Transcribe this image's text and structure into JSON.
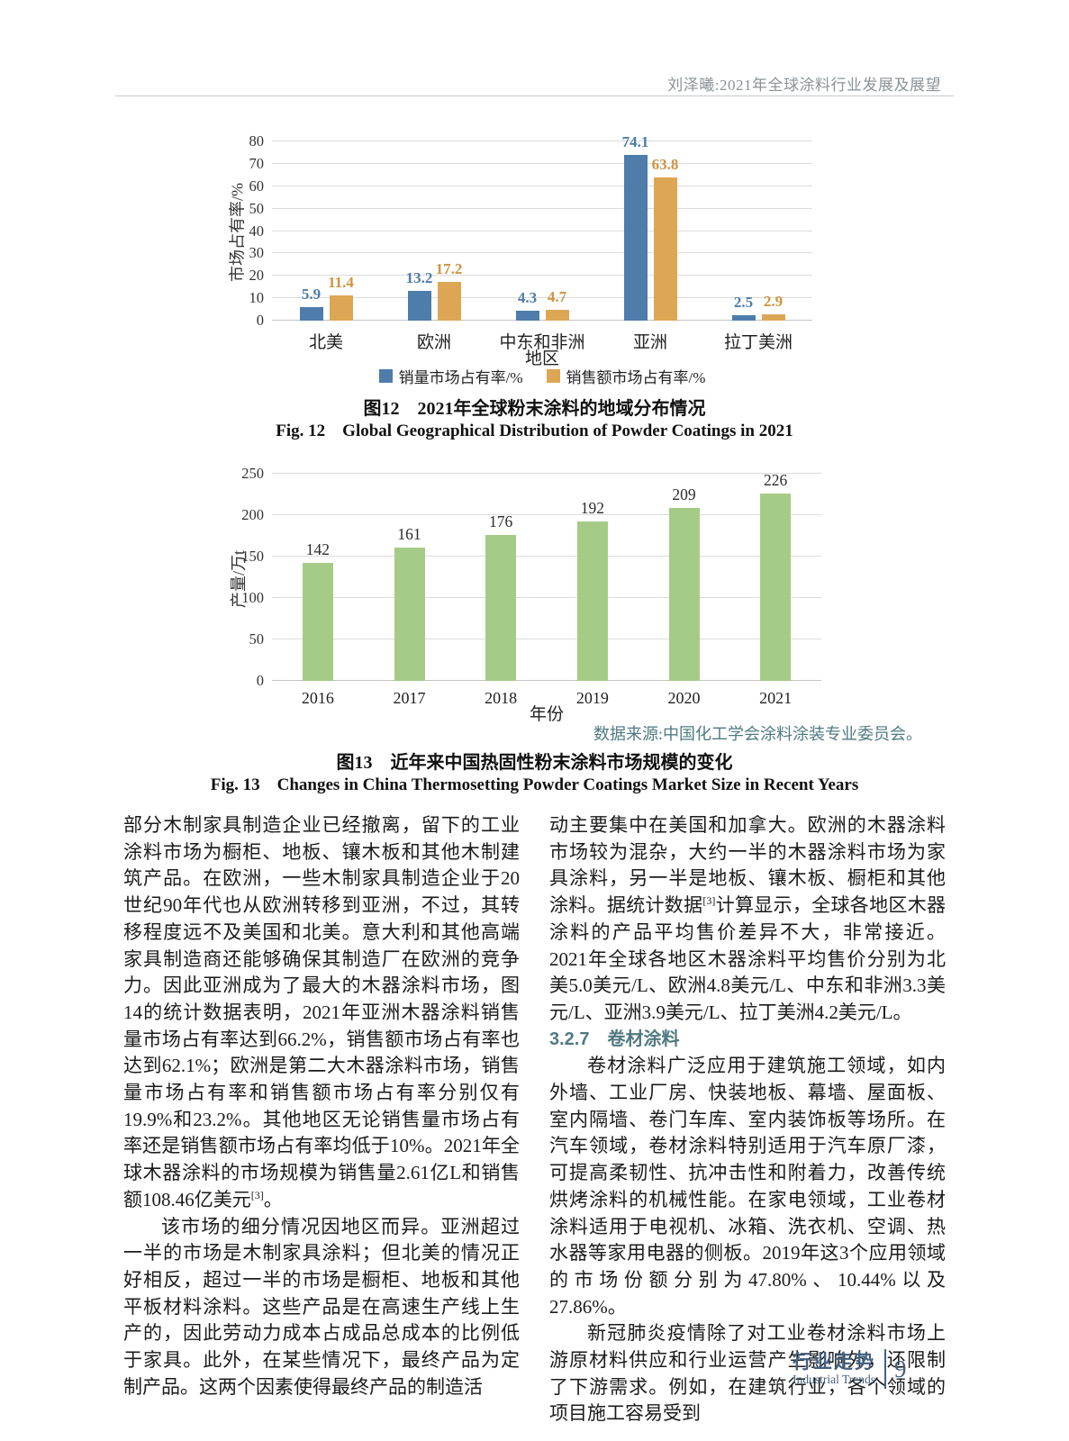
{
  "header": {
    "running_title": "刘泽曦:2021年全球涂料行业发展及展望"
  },
  "chart_data": [
    {
      "id": "fig12",
      "type": "bar",
      "title_cn": "图12　2021年全球粉末涂料的地域分布情况",
      "title_en": "Fig. 12　Global Geographical Distribution of Powder Coatings in 2021",
      "ylabel": "市场占有率/%",
      "xlabel": "地区",
      "ylim": [
        0,
        80
      ],
      "yticks": [
        0,
        10,
        20,
        30,
        40,
        50,
        60,
        70,
        80
      ],
      "grid": true,
      "legend_position": "bottom",
      "categories": [
        "北美",
        "欧洲",
        "中东和非洲",
        "亚洲",
        "拉丁美洲"
      ],
      "series": [
        {
          "name": "销量市场占有率/%",
          "color": "#4e7cab",
          "label_color": "#4e7cab",
          "values": [
            5.9,
            13.2,
            4.3,
            74.1,
            2.5
          ]
        },
        {
          "name": "销售额市场占有率/%",
          "color": "#ddA654",
          "label_color": "#cd9440",
          "values": [
            11.4,
            17.2,
            4.7,
            63.8,
            2.9
          ]
        }
      ]
    },
    {
      "id": "fig13",
      "type": "bar",
      "title_cn": "图13　近年来中国热固性粉末涂料市场规模的变化",
      "title_en": "Fig. 13　Changes in China Thermosetting Powder Coatings Market Size in Recent Years",
      "source_note": "数据来源:中国化工学会涂料涂装专业委员会。",
      "ylabel": "产量/万t",
      "xlabel": "年份",
      "ylim": [
        0,
        250
      ],
      "yticks": [
        0,
        50,
        100,
        150,
        200,
        250
      ],
      "grid": true,
      "categories": [
        "2016",
        "2017",
        "2018",
        "2019",
        "2020",
        "2021"
      ],
      "series": [
        {
          "name": "产量/万t",
          "color": "#a5cc86",
          "label_color": "#2b2b2b",
          "values": [
            142,
            161,
            176,
            192,
            209,
            226
          ]
        }
      ]
    }
  ],
  "body": {
    "left_column": [
      {
        "type": "p",
        "indent": false,
        "text": "部分木制家具制造企业已经撤离，留下的工业涂料市场为橱柜、地板、镶木板和其他木制建筑产品。在欧洲，一些木制家具制造企业于20世纪90年代也从欧洲转移到亚洲，不过，其转移程度远不及美国和北美。意大利和其他高端家具制造商还能够确保其制造厂在欧洲的竞争力。因此亚洲成为了最大的木器涂料市场，图14的统计数据表明，2021年亚洲木器涂料销售量市场占有率达到66.2%，销售额市场占有率也达到62.1%；欧洲是第二大木器涂料市场，销售量市场占有率和销售额市场占有率分别仅有19.9%和23.2%。其他地区无论销售量市场占有率还是销售额市场占有率均低于10%。2021年全球木器涂料的市场规模为销售量2.61亿L和销售额108.46亿美元[3]。"
      },
      {
        "type": "p",
        "indent": true,
        "text": "该市场的细分情况因地区而异。亚洲超过一半的市场是木制家具涂料；但北美的情况正好相反，超过一半的市场是橱柜、地板和其他平板材料涂料。这些产品是在高速生产线上生产的，因此劳动力成本占成品总成本的比例低于家具。此外，在某些情况下，最终产品为定制产品。这两个因素使得最终产品的制造活"
      }
    ],
    "right_column": [
      {
        "type": "p",
        "indent": false,
        "text": "动主要集中在美国和加拿大。欧洲的木器涂料市场较为混杂，大约一半的木器涂料市场为家具涂料，另一半是地板、镶木板、橱柜和其他涂料。据统计数据[3]计算显示，全球各地区木器涂料的产品平均售价差异不大，非常接近。2021年全球各地区木器涂料平均售价分别为北美5.0美元/L、欧洲4.8美元/L、中东和非洲3.3美元/L、亚洲3.9美元/L、拉丁美洲4.2美元/L。"
      },
      {
        "type": "h",
        "text": "3.2.7　卷材涂料"
      },
      {
        "type": "p",
        "indent": true,
        "text": "卷材涂料广泛应用于建筑施工领域，如内外墙、工业厂房、快装地板、幕墙、屋面板、室内隔墙、卷门车库、室内装饰板等场所。在汽车领域，卷材涂料特别适用于汽车原厂漆，可提高柔韧性、抗冲击性和附着力，改善传统烘烤涂料的机械性能。在家电领域，工业卷材涂料适用于电视机、冰箱、洗衣机、空调、热水器等家用电器的侧板。2019年这3个应用领域的市场份额分别为47.80%、10.44%以及27.86%。"
      },
      {
        "type": "p",
        "indent": true,
        "text": "新冠肺炎疫情除了对工业卷材涂料市场上游原材料供应和行业运营产生影响外，还限制了下游需求。例如，在建筑行业，各个领域的项目施工容易受到"
      }
    ]
  },
  "footer": {
    "section_cn": "行业走势",
    "section_en": "Industrial Trends",
    "page_number": "9"
  },
  "colors": {
    "series_volume_blue": "#4e7cab",
    "series_value_orange": "#dda654",
    "series_output_green": "#a5cc86",
    "note_teal": "#4f7a80",
    "footer_blue": "#44607f",
    "header_gray": "#8b9399"
  }
}
